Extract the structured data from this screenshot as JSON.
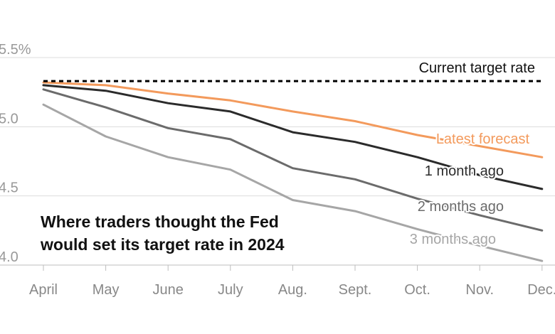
{
  "chart_data": {
    "type": "line",
    "title_lines": [
      "Where traders thought the Fed",
      "would set its target rate in 2024"
    ],
    "categories": [
      "April",
      "May",
      "June",
      "July",
      "Aug.",
      "Sept.",
      "Oct.",
      "Nov.",
      "Dec."
    ],
    "y_ticks": [
      {
        "value": 5.5,
        "label": "5.5%"
      },
      {
        "value": 5.0,
        "label": "5.0"
      },
      {
        "value": 4.5,
        "label": "4.5"
      },
      {
        "value": 4.0,
        "label": "4.0"
      }
    ],
    "ylim": [
      4.0,
      5.5
    ],
    "reference_line": {
      "label": "Current target rate",
      "value": 5.33,
      "color": "#000000",
      "style": "dashed"
    },
    "series": [
      {
        "key": "m3",
        "name": "3 months ago",
        "color": "#a6a6a6",
        "values": [
          5.16,
          4.93,
          4.78,
          4.69,
          4.47,
          4.39,
          4.26,
          4.14,
          4.03
        ]
      },
      {
        "key": "m2",
        "name": "2 months ago",
        "color": "#6b6b6b",
        "values": [
          5.27,
          5.14,
          4.99,
          4.91,
          4.7,
          4.62,
          4.48,
          4.36,
          4.25
        ]
      },
      {
        "key": "m1",
        "name": "1 month ago",
        "color": "#2b2b2b",
        "values": [
          5.3,
          5.26,
          5.17,
          5.11,
          4.96,
          4.89,
          4.78,
          4.65,
          4.55
        ]
      },
      {
        "key": "latest",
        "name": "Latest forecast",
        "color": "#f39a5c",
        "values": [
          5.32,
          5.3,
          5.24,
          5.19,
          5.11,
          5.04,
          4.94,
          4.86,
          4.78
        ]
      }
    ],
    "grid": true
  }
}
